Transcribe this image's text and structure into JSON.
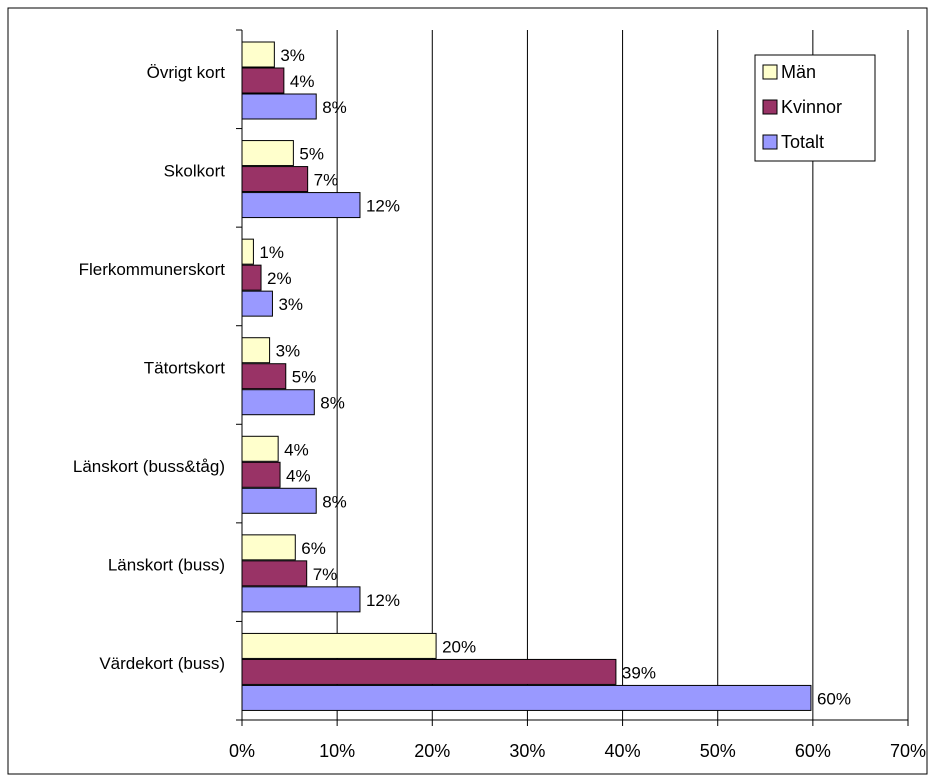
{
  "chart_data": {
    "type": "bar",
    "orientation": "horizontal",
    "categories": [
      "Övrigt kort",
      "Skolkort",
      "Flerkommunerskort",
      "Tätortskort",
      "Länskort (buss&tåg)",
      "Länskort (buss)",
      "Värdekort (buss)"
    ],
    "series": [
      {
        "name": "Män",
        "color": "#ffffcc",
        "values": [
          3.4,
          5.4,
          1.2,
          2.9,
          3.8,
          5.6,
          20.4
        ],
        "value_labels": [
          "3%",
          "5%",
          "1%",
          "3%",
          "4%",
          "6%",
          "20%"
        ]
      },
      {
        "name": "Kvinnor",
        "color": "#993366",
        "values": [
          4.4,
          6.9,
          2.0,
          4.6,
          4.0,
          6.8,
          39.3
        ],
        "value_labels": [
          "4%",
          "7%",
          "2%",
          "5%",
          "4%",
          "7%",
          "39%"
        ]
      },
      {
        "name": "Totalt",
        "color": "#9999ff",
        "values": [
          7.8,
          12.4,
          3.2,
          7.6,
          7.8,
          12.4,
          59.8
        ],
        "value_labels": [
          "8%",
          "12%",
          "3%",
          "8%",
          "8%",
          "12%",
          "60%"
        ]
      }
    ],
    "xlim": [
      0,
      70
    ],
    "xticks": [
      {
        "value": 0,
        "label": "0%"
      },
      {
        "value": 10,
        "label": "10%"
      },
      {
        "value": 20,
        "label": "20%"
      },
      {
        "value": 30,
        "label": "30%"
      },
      {
        "value": 40,
        "label": "40%"
      },
      {
        "value": 50,
        "label": "50%"
      },
      {
        "value": 60,
        "label": "60%"
      },
      {
        "value": 70,
        "label": "70%"
      }
    ],
    "grid": true,
    "legend": "top-right"
  }
}
